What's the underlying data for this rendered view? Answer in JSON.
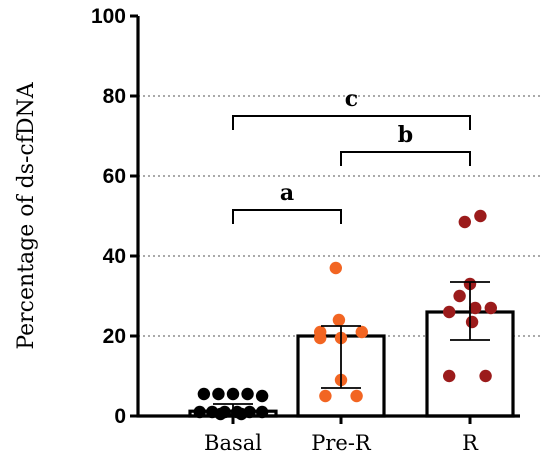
{
  "chart_data": {
    "type": "bar",
    "ylabel": "Percentage of ds-cfDNA",
    "xlabel": "",
    "title": "",
    "ylim": [
      0,
      100
    ],
    "y_ticks": [
      "0",
      "20",
      "40",
      "60",
      "80",
      "100"
    ],
    "gridlines": [
      20,
      40,
      60,
      80
    ],
    "categories": [
      "Basal",
      "Pre-R",
      "R"
    ],
    "colors": {
      "Basal": "#000000",
      "Pre-R": "#f26522",
      "R": "#9b1b1b"
    },
    "series": [
      {
        "values": [
          1.2,
          20.0,
          26.0
        ],
        "error_low": [
          0.5,
          7.0,
          19.0
        ],
        "error_high": [
          3.0,
          22.5,
          33.5
        ],
        "points": [
          [
            [
              -0.28,
              5.5
            ],
            [
              -0.14,
              5.5
            ],
            [
              0.0,
              5.5
            ],
            [
              0.14,
              5.5
            ],
            [
              0.28,
              5.0
            ],
            [
              -0.32,
              1.0
            ],
            [
              -0.2,
              1.0
            ],
            [
              -0.08,
              1.0
            ],
            [
              0.04,
              1.0
            ],
            [
              0.16,
              1.0
            ],
            [
              0.28,
              1.0
            ],
            [
              -0.12,
              0.5
            ],
            [
              0.08,
              0.5
            ]
          ],
          [
            [
              -0.05,
              37.0
            ],
            [
              -0.02,
              24.0
            ],
            [
              -0.2,
              21.0
            ],
            [
              0.2,
              21.0
            ],
            [
              0.0,
              19.5
            ],
            [
              -0.2,
              19.5
            ],
            [
              0.0,
              9.0
            ],
            [
              -0.15,
              5.0
            ],
            [
              0.15,
              5.0
            ]
          ],
          [
            [
              0.1,
              50.0
            ],
            [
              -0.05,
              48.5
            ],
            [
              0.0,
              33.0
            ],
            [
              -0.1,
              30.0
            ],
            [
              0.05,
              27.0
            ],
            [
              0.2,
              27.0
            ],
            [
              -0.2,
              26.0
            ],
            [
              0.02,
              23.5
            ],
            [
              -0.2,
              10.0
            ],
            [
              0.15,
              10.0
            ]
          ]
        ]
      }
    ],
    "significance": [
      {
        "label": "a",
        "from": "Basal",
        "to": "Pre-R",
        "y": 51.5
      },
      {
        "label": "b",
        "from": "Pre-R",
        "to": "R",
        "y": 66.0
      },
      {
        "label": "c",
        "from": "Basal",
        "to": "R",
        "y": 75.0
      }
    ]
  }
}
